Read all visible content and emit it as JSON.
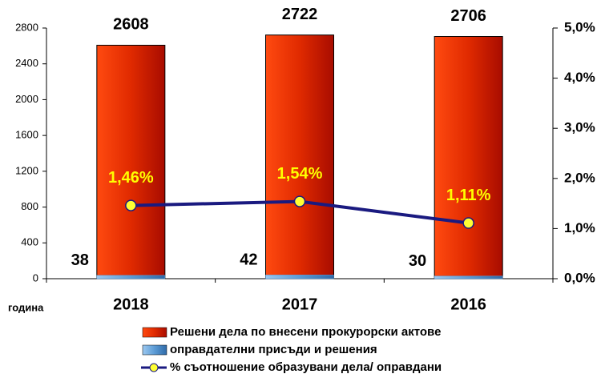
{
  "chart_data": {
    "type": "bar",
    "categories": [
      "2018",
      "2017",
      "2016"
    ],
    "x_label": "година",
    "series": [
      {
        "name": "Решени дела по внесени прокурорски актове",
        "color": "#e02a00",
        "values": [
          2608,
          2722,
          2706
        ]
      },
      {
        "name": "оправдателни присъди и решения",
        "color": "#5b9bd5",
        "values": [
          38,
          42,
          30
        ]
      },
      {
        "name": "% съотношение образувани дела/ оправдани",
        "type": "line",
        "axis": "y2",
        "color": "#1a1a80",
        "marker_color": "#ffff33",
        "values": [
          1.46,
          1.54,
          1.11
        ],
        "value_labels": [
          "1,46%",
          "1,54%",
          "1,11%"
        ],
        "label_color": "#ffff00"
      }
    ],
    "ylim": [
      0,
      2800
    ],
    "yticks": [
      0,
      400,
      800,
      1200,
      1600,
      2000,
      2400,
      2800
    ],
    "y2lim": [
      0,
      5
    ],
    "y2ticks": [
      {
        "value": 0,
        "label": "0,0%"
      },
      {
        "value": 1,
        "label": "1,0%"
      },
      {
        "value": 2,
        "label": "2,0%"
      },
      {
        "value": 3,
        "label": "3,0%"
      },
      {
        "value": 4,
        "label": "4,0%"
      },
      {
        "value": 5,
        "label": "5,0%"
      }
    ],
    "legend": "bottom"
  }
}
